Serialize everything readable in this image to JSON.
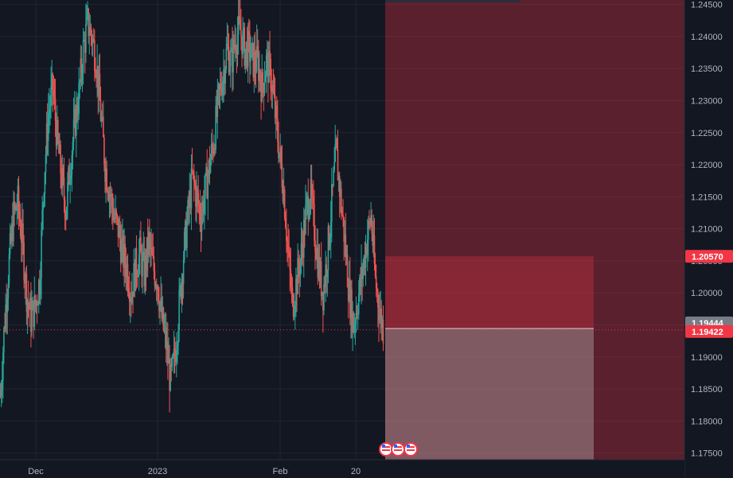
{
  "colors": {
    "background": "#131722",
    "grid": "#1f2430",
    "axis_text": "#b2b5be",
    "up": "#26a69a",
    "down": "#ef5350",
    "stop_zone": "rgba(242,54,69,0.35)",
    "target_zone": "rgba(200,200,200,0.35)",
    "outer_zone": "rgba(242,54,69,0.32)",
    "last_price_tag": "#f23645",
    "neutral_tag": "#787b86"
  },
  "chart_data": {
    "type": "candlestick",
    "symbol": "",
    "y_ticks": [
      "1.24500",
      "1.24000",
      "1.23500",
      "1.23000",
      "1.22500",
      "1.22000",
      "1.21500",
      "1.21000",
      "1.20500",
      "1.20000",
      "1.19500",
      "1.19000",
      "1.18500",
      "1.18000",
      "1.17500"
    ],
    "y_tick_values": [
      1.245,
      1.24,
      1.235,
      1.23,
      1.225,
      1.22,
      1.215,
      1.21,
      1.205,
      1.2,
      1.195,
      1.19,
      1.185,
      1.18,
      1.175
    ],
    "ylim": [
      1.1744,
      1.2452
    ],
    "x_ticks": [
      "Dec",
      "2023",
      "Feb",
      "20"
    ],
    "price_tags": {
      "stop_level": "1.20570",
      "entry_level": "1.19444",
      "last_price": "1.19422"
    },
    "price_values": {
      "stop": 1.2057,
      "entry": 1.19444,
      "last": 1.19422
    },
    "close_path": [
      1.184,
      1.196,
      1.205,
      1.212,
      1.214,
      1.208,
      1.2,
      1.196,
      1.198,
      1.202,
      1.218,
      1.228,
      1.232,
      1.224,
      1.218,
      1.213,
      1.22,
      1.226,
      1.231,
      1.238,
      1.242,
      1.24,
      1.236,
      1.228,
      1.22,
      1.216,
      1.212,
      1.21,
      1.206,
      1.204,
      1.2,
      1.204,
      1.206,
      1.203,
      1.208,
      1.204,
      1.202,
      1.196,
      1.192,
      1.186,
      1.19,
      1.198,
      1.206,
      1.212,
      1.218,
      1.215,
      1.212,
      1.216,
      1.22,
      1.224,
      1.23,
      1.234,
      1.238,
      1.236,
      1.24,
      1.241,
      1.238,
      1.238,
      1.236,
      1.236,
      1.232,
      1.236,
      1.234,
      1.228,
      1.222,
      1.216,
      1.206,
      1.198,
      1.202,
      1.206,
      1.212,
      1.216,
      1.21,
      1.204,
      1.2,
      1.206,
      1.214,
      1.222,
      1.215,
      1.208,
      1.2,
      1.195,
      1.199,
      1.203,
      1.208,
      1.212,
      1.202,
      1.197,
      1.194
    ],
    "events": [
      "flag-icon",
      "flag-icon",
      "flag-icon"
    ]
  }
}
